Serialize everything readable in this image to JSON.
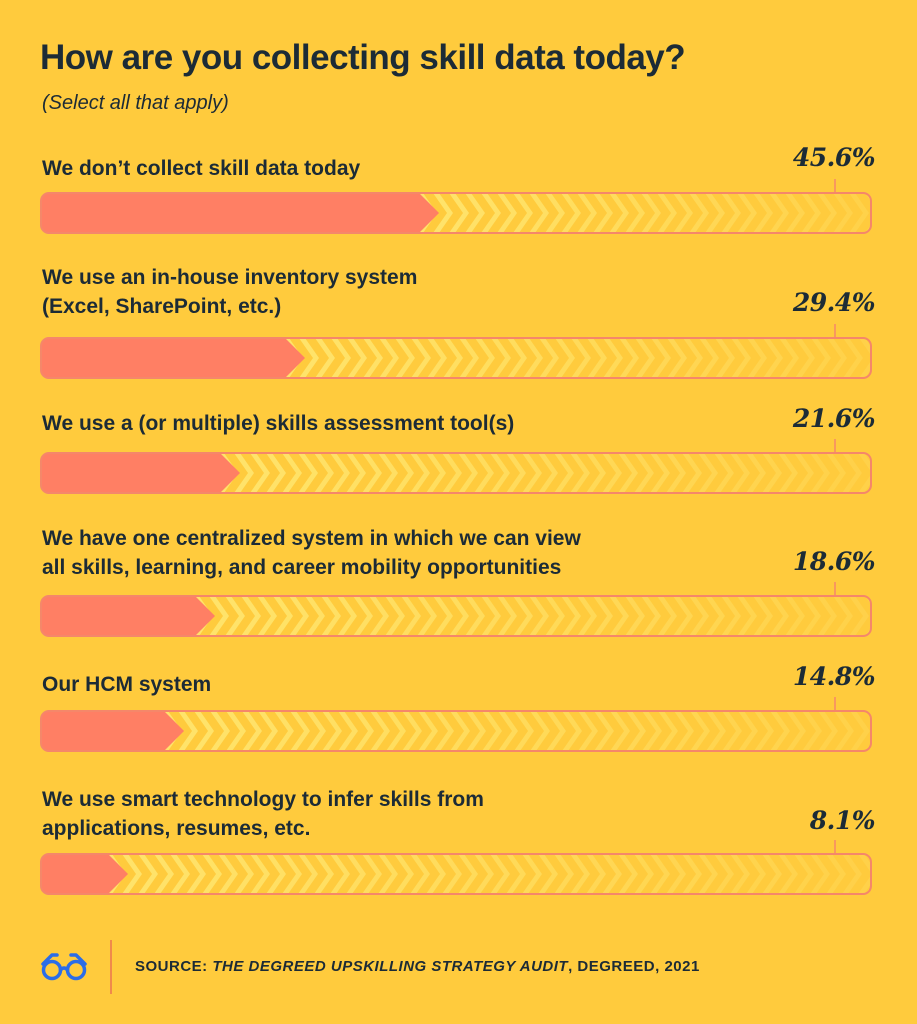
{
  "title": "How are you collecting skill data today?",
  "subtitle": "(Select all that apply)",
  "colors": {
    "background": "#FFCB3D",
    "bar_fill": "#FF7F64",
    "bar_outline": "#F5876A",
    "chevron": "#FFE36B",
    "text": "#1C2B36"
  },
  "chart_data": {
    "type": "bar",
    "orientation": "horizontal",
    "title": "How are you collecting skill data today?",
    "subtitle": "(Select all that apply)",
    "value_suffix": "%",
    "xlim": [
      0,
      100
    ],
    "grid": false,
    "categories": [
      "We don’t collect skill data today",
      "We use an in-house inventory system\n(Excel, SharePoint, etc.)",
      "We use a (or multiple) skills assessment tool(s)",
      "We have one centralized system in which we can view\nall skills, learning, and career mobility opportunities",
      "Our HCM system",
      "We use smart technology to infer skills from\napplications, resumes, etc."
    ],
    "values": [
      45.6,
      29.4,
      21.6,
      18.6,
      14.8,
      8.1
    ],
    "value_labels": [
      "45.6%",
      "29.4%",
      "21.6%",
      "18.6%",
      "14.8%",
      "8.1%"
    ]
  },
  "footer": {
    "logo_icon": "glasses-icon",
    "source_prefix": "SOURCE: ",
    "source_title": "THE DEGREED UPSKILLING STRATEGY AUDIT",
    "source_suffix": ", DEGREED, 2021"
  }
}
